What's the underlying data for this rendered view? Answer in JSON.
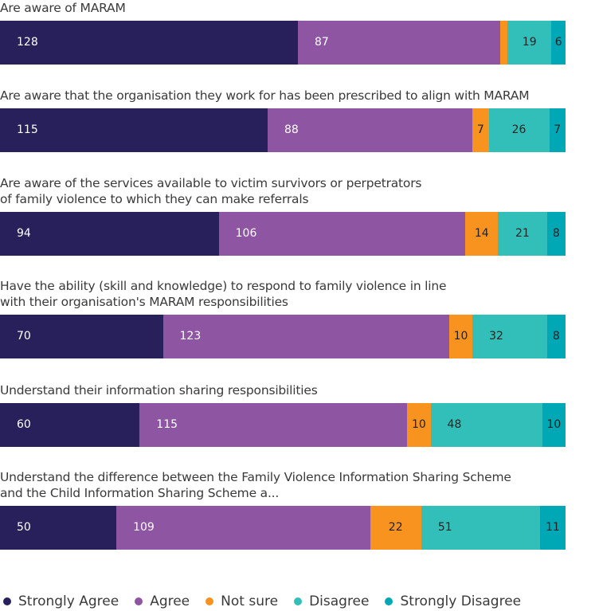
{
  "chart_data": {
    "type": "bar",
    "orientation": "horizontal",
    "stacked": true,
    "categories": [
      "Are aware of MARAM",
      "Are aware that the organisation they work for has been prescribed to align with MARAM",
      "Are aware of the services available to victim survivors or perpetrators\nof family violence to which they can make referrals",
      "Have the ability (skill and knowledge) to respond to family violence in line\nwith their organisation's MARAM responsibilities",
      "Understand their information sharing responsibilities",
      "Understand the difference between the Family Violence Information Sharing Scheme\nand the Child Information Sharing Scheme a..."
    ],
    "series": [
      {
        "name": "Strongly Agree",
        "color": "#27205a",
        "text_color": "#ffffff",
        "values": [
          128,
          115,
          94,
          70,
          60,
          50
        ]
      },
      {
        "name": "Agree",
        "color": "#8e55a2",
        "text_color": "#ffffff",
        "values": [
          87,
          88,
          106,
          123,
          115,
          109
        ]
      },
      {
        "name": "Not sure",
        "color": "#f7931e",
        "text_color": "#222222",
        "values": [
          3,
          7,
          14,
          10,
          10,
          22
        ],
        "labels_shown": [
          false,
          true,
          true,
          true,
          true,
          true
        ]
      },
      {
        "name": "Disagree",
        "color": "#33bfb9",
        "text_color": "#222222",
        "values": [
          19,
          26,
          21,
          32,
          48,
          51
        ]
      },
      {
        "name": "Strongly Disagree",
        "color": "#00a7b5",
        "text_color": "#222222",
        "values": [
          6,
          7,
          8,
          8,
          10,
          11
        ]
      }
    ],
    "legend": "bottom",
    "grid": false
  }
}
